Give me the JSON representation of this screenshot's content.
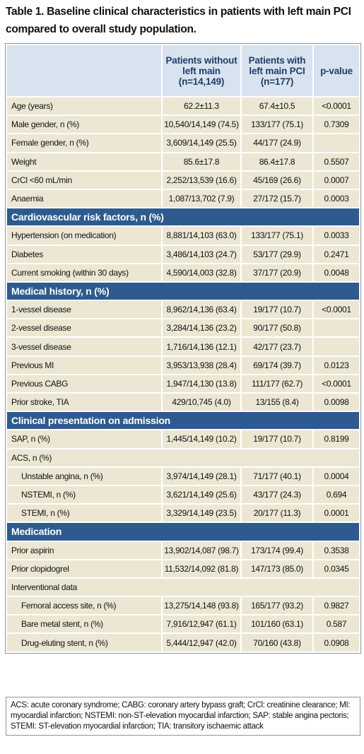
{
  "title": "Table 1. Baseline clinical characteristics in patients with left main PCI compared to overall study population.",
  "table": {
    "header": [
      "",
      "Patients without left main (n=14,149)",
      "Patients with left main PCI (n=177)",
      "p-value"
    ],
    "sections": [
      {
        "rows": [
          [
            "Age (years)",
            "62.2±11.3",
            "67.4±10.5",
            "<0.0001"
          ],
          [
            "Male gender, n (%)",
            "10,540/14,149 (74.5)",
            "133/177 (75.1)",
            "0.7309"
          ],
          [
            "Female gender, n (%)",
            "3,609/14,149 (25.5)",
            "44/177 (24.9)"
          ],
          [
            "Weight",
            "85.6±17.8",
            "86.4±17.8",
            "0.5507"
          ],
          [
            "CrCl <60 mL/min",
            "2,252/13,539 (16.6)",
            "45/169 (26.6)",
            "0.0007"
          ],
          [
            "Anaemia",
            "1,087/13,702 (7.9)",
            "27/172 (15.7)",
            "0.0003"
          ]
        ]
      },
      {
        "title": "Cardiovascular risk factors, n (%)",
        "rows": [
          [
            "Hypertension (on medication)",
            "8,881/14,103 (63.0)",
            "133/177 (75.1)",
            "0.0033"
          ],
          [
            "Diabetes",
            "3,486/14,103 (24.7)",
            "53/177 (29.9)",
            "0.2471"
          ],
          [
            "Current smoking (within 30 days)",
            "4,590/14,003 (32.8)",
            "37/177 (20.9)",
            "0.0048"
          ]
        ]
      },
      {
        "title": "Medical history, n (%)",
        "rows": [
          [
            "1-vessel disease",
            "8,962/14,136 (63.4)",
            "19/177 (10.7)",
            "<0.0001"
          ],
          [
            "2-vessel disease",
            "3,284/14,136 (23.2)",
            "90/177 (50.8)"
          ],
          [
            "3-vessel disease",
            "1,716/14,136 (12.1)",
            "42/177 (23.7)"
          ],
          [
            "Previous MI",
            "3,953/13,938 (28.4)",
            "69/174 (39.7)",
            "0.0123"
          ],
          [
            "Previous CABG",
            "1,947/14,130 (13.8)",
            "111/177 (62.7)",
            "<0.0001"
          ],
          [
            "Prior stroke, TIA",
            "429/10,745 (4.0)",
            "13/155 (8.4)",
            "0.0098"
          ]
        ]
      },
      {
        "title": "Clinical presentation on admission",
        "rows": [
          [
            "SAP, n (%)",
            "1,445/14,149 (10.2)",
            "19/177 (10.7)",
            "0.8199"
          ],
          [
            "ACS, n (%)"
          ],
          [
            "Unstable angina, n (%)",
            "3,974/14,149 (28.1)",
            "71/177 (40.1)",
            "0.0004"
          ],
          [
            "NSTEMI, n (%)",
            "3,621/14,149 (25.6)",
            "43/177 (24.3)",
            "0.694"
          ],
          [
            "STEMI, n (%)",
            "3,329/14,149 (23.5)",
            "20/177 (11.3)",
            "0.0001"
          ]
        ]
      },
      {
        "title": "Medication",
        "rows": [
          [
            "Prior aspirin",
            "13,902/14,087 (98.7)",
            "173/174 (99.4)",
            "0.3538"
          ],
          [
            "Prior clopidogrel",
            "11,532/14,092 (81.8)",
            "147/173 (85.0)",
            "0.0345"
          ],
          [
            "Interventional data"
          ],
          [
            "Femoral access site, n (%)",
            "13,275/14,148 (93.8)",
            "165/177 (93.2)",
            "0.9827"
          ],
          [
            "Bare metal stent, n (%)",
            "7,916/12,947 (61.1)",
            "101/160 (63.1)",
            "0.587"
          ],
          [
            "Drug-eluting stent, n (%)",
            "5,444/12,947 (42.0)",
            "70/160 (43.8)",
            "0.0908"
          ]
        ]
      }
    ]
  },
  "footnote": "ACS: acute coronary syndrome; CABG: coronary artery bypass graft; CrCl: creatinine clearance; MI: myocardial infarction; NSTEMI: non-ST-elevation myocardial infarction; SAP: stable angina pectoris; STEMI: ST-elevation myocardial infarction; TIA: transitory ischaemic attack"
}
